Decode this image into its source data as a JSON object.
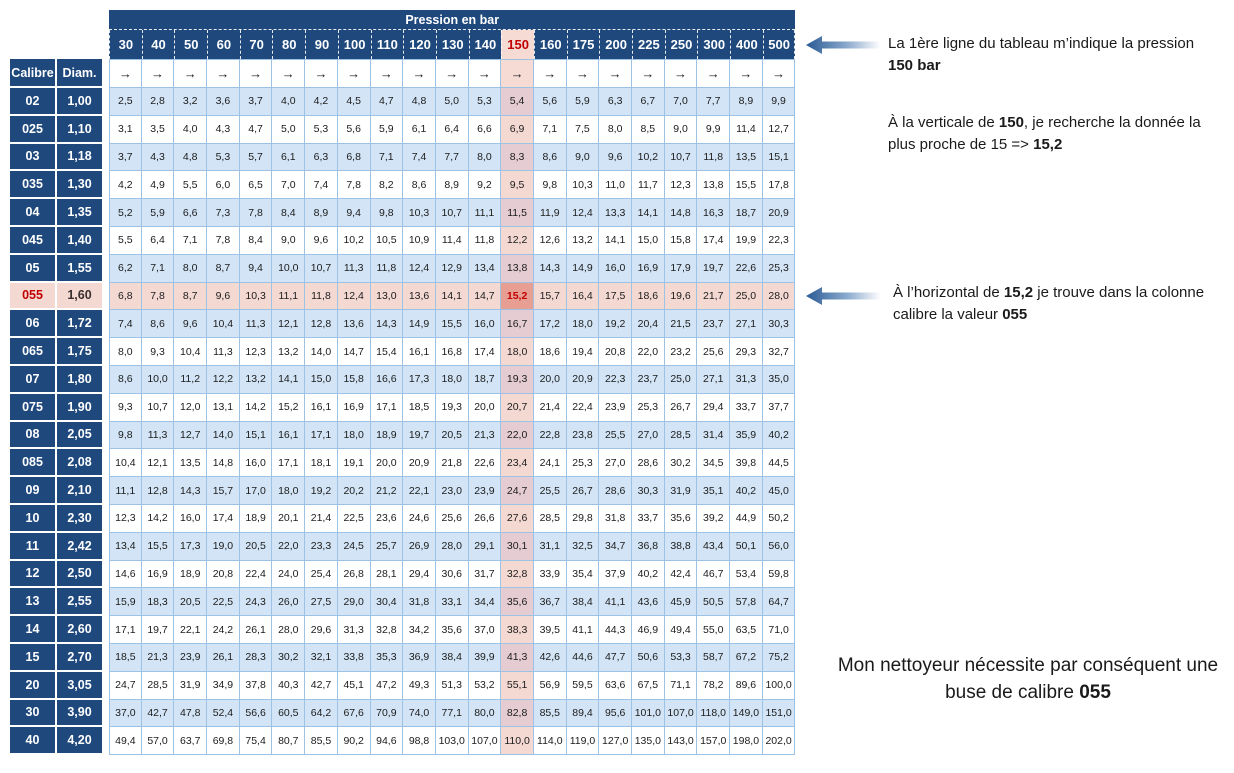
{
  "colors": {
    "header_blue": "#1f497d",
    "stripe_blue": "#d2e4f5",
    "cell_border": "#9cc2e5",
    "pink_header": "#f6dbd5",
    "pink_row": "#f4d9d3",
    "pink_col_on_white": "#f4d9d3",
    "pink_col_on_stripe": "#e4ccd2",
    "intersection": "#e79e93",
    "red": "#c00000"
  },
  "icons": {
    "right_arrow": "→",
    "annotation_arrow": "left-arrow-icon"
  },
  "chart_data": {
    "type": "table",
    "title": "Pression en bar",
    "corner_headers": {
      "calibre": "Calibre",
      "diam": "Diam."
    },
    "pressures": [
      "30",
      "40",
      "50",
      "60",
      "70",
      "80",
      "90",
      "100",
      "110",
      "120",
      "130",
      "140",
      "150",
      "160",
      "175",
      "200",
      "225",
      "250",
      "300",
      "400",
      "500"
    ],
    "highlight": {
      "pressure": "150",
      "pressure_index": 12,
      "calibre": "055",
      "value": "15,2"
    },
    "rows": [
      {
        "c": "02",
        "d": "1,00",
        "v": [
          "2,5",
          "2,8",
          "3,2",
          "3,6",
          "3,7",
          "4,0",
          "4,2",
          "4,5",
          "4,7",
          "4,8",
          "5,0",
          "5,3",
          "5,4",
          "5,6",
          "5,9",
          "6,3",
          "6,7",
          "7,0",
          "7,7",
          "8,9",
          "9,9"
        ]
      },
      {
        "c": "025",
        "d": "1,10",
        "v": [
          "3,1",
          "3,5",
          "4,0",
          "4,3",
          "4,7",
          "5,0",
          "5,3",
          "5,6",
          "5,9",
          "6,1",
          "6,4",
          "6,6",
          "6,9",
          "7,1",
          "7,5",
          "8,0",
          "8,5",
          "9,0",
          "9,9",
          "11,4",
          "12,7"
        ]
      },
      {
        "c": "03",
        "d": "1,18",
        "v": [
          "3,7",
          "4,3",
          "4,8",
          "5,3",
          "5,7",
          "6,1",
          "6,3",
          "6,8",
          "7,1",
          "7,4",
          "7,7",
          "8,0",
          "8,3",
          "8,6",
          "9,0",
          "9,6",
          "10,2",
          "10,7",
          "11,8",
          "13,5",
          "15,1"
        ]
      },
      {
        "c": "035",
        "d": "1,30",
        "v": [
          "4,2",
          "4,9",
          "5,5",
          "6,0",
          "6,5",
          "7,0",
          "7,4",
          "7,8",
          "8,2",
          "8,6",
          "8,9",
          "9,2",
          "9,5",
          "9,8",
          "10,3",
          "11,0",
          "11,7",
          "12,3",
          "13,8",
          "15,5",
          "17,8"
        ]
      },
      {
        "c": "04",
        "d": "1,35",
        "v": [
          "5,2",
          "5,9",
          "6,6",
          "7,3",
          "7,8",
          "8,4",
          "8,9",
          "9,4",
          "9,8",
          "10,3",
          "10,7",
          "11,1",
          "11,5",
          "11,9",
          "12,4",
          "13,3",
          "14,1",
          "14,8",
          "16,3",
          "18,7",
          "20,9"
        ]
      },
      {
        "c": "045",
        "d": "1,40",
        "v": [
          "5,5",
          "6,4",
          "7,1",
          "7,8",
          "8,4",
          "9,0",
          "9,6",
          "10,2",
          "10,5",
          "10,9",
          "11,4",
          "11,8",
          "12,2",
          "12,6",
          "13,2",
          "14,1",
          "15,0",
          "15,8",
          "17,4",
          "19,9",
          "22,3"
        ]
      },
      {
        "c": "05",
        "d": "1,55",
        "v": [
          "6,2",
          "7,1",
          "8,0",
          "8,7",
          "9,4",
          "10,0",
          "10,7",
          "11,3",
          "11,8",
          "12,4",
          "12,9",
          "13,4",
          "13,8",
          "14,3",
          "14,9",
          "16,0",
          "16,9",
          "17,9",
          "19,7",
          "22,6",
          "25,3"
        ]
      },
      {
        "c": "055",
        "d": "1,60",
        "v": [
          "6,8",
          "7,8",
          "8,7",
          "9,6",
          "10,3",
          "11,1",
          "11,8",
          "12,4",
          "13,0",
          "13,6",
          "14,1",
          "14,7",
          "15,2",
          "15,7",
          "16,4",
          "17,5",
          "18,6",
          "19,6",
          "21,7",
          "25,0",
          "28,0"
        ],
        "highlight": true
      },
      {
        "c": "06",
        "d": "1,72",
        "v": [
          "7,4",
          "8,6",
          "9,6",
          "10,4",
          "11,3",
          "12,1",
          "12,8",
          "13,6",
          "14,3",
          "14,9",
          "15,5",
          "16,0",
          "16,7",
          "17,2",
          "18,0",
          "19,2",
          "20,4",
          "21,5",
          "23,7",
          "27,1",
          "30,3"
        ]
      },
      {
        "c": "065",
        "d": "1,75",
        "v": [
          "8,0",
          "9,3",
          "10,4",
          "11,3",
          "12,3",
          "13,2",
          "14,0",
          "14,7",
          "15,4",
          "16,1",
          "16,8",
          "17,4",
          "18,0",
          "18,6",
          "19,4",
          "20,8",
          "22,0",
          "23,2",
          "25,6",
          "29,3",
          "32,7"
        ]
      },
      {
        "c": "07",
        "d": "1,80",
        "v": [
          "8,6",
          "10,0",
          "11,2",
          "12,2",
          "13,2",
          "14,1",
          "15,0",
          "15,8",
          "16,6",
          "17,3",
          "18,0",
          "18,7",
          "19,3",
          "20,0",
          "20,9",
          "22,3",
          "23,7",
          "25,0",
          "27,1",
          "31,3",
          "35,0"
        ]
      },
      {
        "c": "075",
        "d": "1,90",
        "v": [
          "9,3",
          "10,7",
          "12,0",
          "13,1",
          "14,2",
          "15,2",
          "16,1",
          "16,9",
          "17,1",
          "18,5",
          "19,3",
          "20,0",
          "20,7",
          "21,4",
          "22,4",
          "23,9",
          "25,3",
          "26,7",
          "29,4",
          "33,7",
          "37,7"
        ]
      },
      {
        "c": "08",
        "d": "2,05",
        "v": [
          "9,8",
          "11,3",
          "12,7",
          "14,0",
          "15,1",
          "16,1",
          "17,1",
          "18,0",
          "18,9",
          "19,7",
          "20,5",
          "21,3",
          "22,0",
          "22,8",
          "23,8",
          "25,5",
          "27,0",
          "28,5",
          "31,4",
          "35,9",
          "40,2"
        ]
      },
      {
        "c": "085",
        "d": "2,08",
        "v": [
          "10,4",
          "12,1",
          "13,5",
          "14,8",
          "16,0",
          "17,1",
          "18,1",
          "19,1",
          "20,0",
          "20,9",
          "21,8",
          "22,6",
          "23,4",
          "24,1",
          "25,3",
          "27,0",
          "28,6",
          "30,2",
          "34,5",
          "39,8",
          "44,5"
        ]
      },
      {
        "c": "09",
        "d": "2,10",
        "v": [
          "11,1",
          "12,8",
          "14,3",
          "15,7",
          "17,0",
          "18,0",
          "19,2",
          "20,2",
          "21,2",
          "22,1",
          "23,0",
          "23,9",
          "24,7",
          "25,5",
          "26,7",
          "28,6",
          "30,3",
          "31,9",
          "35,1",
          "40,2",
          "45,0"
        ]
      },
      {
        "c": "10",
        "d": "2,30",
        "v": [
          "12,3",
          "14,2",
          "16,0",
          "17,4",
          "18,9",
          "20,1",
          "21,4",
          "22,5",
          "23,6",
          "24,6",
          "25,6",
          "26,6",
          "27,6",
          "28,5",
          "29,8",
          "31,8",
          "33,7",
          "35,6",
          "39,2",
          "44,9",
          "50,2"
        ]
      },
      {
        "c": "11",
        "d": "2,42",
        "v": [
          "13,4",
          "15,5",
          "17,3",
          "19,0",
          "20,5",
          "22,0",
          "23,3",
          "24,5",
          "25,7",
          "26,9",
          "28,0",
          "29,1",
          "30,1",
          "31,1",
          "32,5",
          "34,7",
          "36,8",
          "38,8",
          "43,4",
          "50,1",
          "56,0"
        ]
      },
      {
        "c": "12",
        "d": "2,50",
        "v": [
          "14,6",
          "16,9",
          "18,9",
          "20,8",
          "22,4",
          "24,0",
          "25,4",
          "26,8",
          "28,1",
          "29,4",
          "30,6",
          "31,7",
          "32,8",
          "33,9",
          "35,4",
          "37,9",
          "40,2",
          "42,4",
          "46,7",
          "53,4",
          "59,8"
        ]
      },
      {
        "c": "13",
        "d": "2,55",
        "v": [
          "15,9",
          "18,3",
          "20,5",
          "22,5",
          "24,3",
          "26,0",
          "27,5",
          "29,0",
          "30,4",
          "31,8",
          "33,1",
          "34,4",
          "35,6",
          "36,7",
          "38,4",
          "41,1",
          "43,6",
          "45,9",
          "50,5",
          "57,8",
          "64,7"
        ]
      },
      {
        "c": "14",
        "d": "2,60",
        "v": [
          "17,1",
          "19,7",
          "22,1",
          "24,2",
          "26,1",
          "28,0",
          "29,6",
          "31,3",
          "32,8",
          "34,2",
          "35,6",
          "37,0",
          "38,3",
          "39,5",
          "41,1",
          "44,3",
          "46,9",
          "49,4",
          "55,0",
          "63,5",
          "71,0"
        ]
      },
      {
        "c": "15",
        "d": "2,70",
        "v": [
          "18,5",
          "21,3",
          "23,9",
          "26,1",
          "28,3",
          "30,2",
          "32,1",
          "33,8",
          "35,3",
          "36,9",
          "38,4",
          "39,9",
          "41,3",
          "42,6",
          "44,6",
          "47,7",
          "50,6",
          "53,3",
          "58,7",
          "67,2",
          "75,2"
        ]
      },
      {
        "c": "20",
        "d": "3,05",
        "v": [
          "24,7",
          "28,5",
          "31,9",
          "34,9",
          "37,8",
          "40,3",
          "42,7",
          "45,1",
          "47,2",
          "49,3",
          "51,3",
          "53,2",
          "55,1",
          "56,9",
          "59,5",
          "63,6",
          "67,5",
          "71,1",
          "78,2",
          "89,6",
          "100,0"
        ]
      },
      {
        "c": "30",
        "d": "3,90",
        "v": [
          "37,0",
          "42,7",
          "47,8",
          "52,4",
          "56,6",
          "60,5",
          "64,2",
          "67,6",
          "70,9",
          "74,0",
          "77,1",
          "80,0",
          "82,8",
          "85,5",
          "89,4",
          "95,6",
          "101,0",
          "107,0",
          "118,0",
          "149,0",
          "151,0"
        ]
      },
      {
        "c": "40",
        "d": "4,20",
        "v": [
          "49,4",
          "57,0",
          "63,7",
          "69,8",
          "75,4",
          "80,7",
          "85,5",
          "90,2",
          "94,6",
          "98,8",
          "103,0",
          "107,0",
          "110,0",
          "114,0",
          "119,0",
          "127,0",
          "135,0",
          "143,0",
          "157,0",
          "198,0",
          "202,0"
        ]
      }
    ]
  },
  "annotations": {
    "pressure_note": {
      "segments": [
        {
          "t": "La 1ère ligne du tableau m’indique la pression ",
          "b": false
        },
        {
          "t": "150 bar",
          "b": true
        }
      ]
    },
    "vertical_note": {
      "segments": [
        {
          "t": "À la verticale de ",
          "b": false
        },
        {
          "t": "150",
          "b": true
        },
        {
          "t": ", je recherche la donnée la plus proche de 15 => ",
          "b": false
        },
        {
          "t": "15,2",
          "b": true
        }
      ]
    },
    "horizontal_note": {
      "segments": [
        {
          "t": "À l’horizontal de ",
          "b": false
        },
        {
          "t": "15,2",
          "b": true
        },
        {
          "t": " je trouve dans la colonne calibre la valeur ",
          "b": false
        },
        {
          "t": "055",
          "b": true
        }
      ]
    },
    "conclusion_note": {
      "segments": [
        {
          "t": "Mon nettoyeur nécessite par conséquent une buse de calibre ",
          "b": false
        },
        {
          "t": "055",
          "b": true
        }
      ]
    }
  }
}
